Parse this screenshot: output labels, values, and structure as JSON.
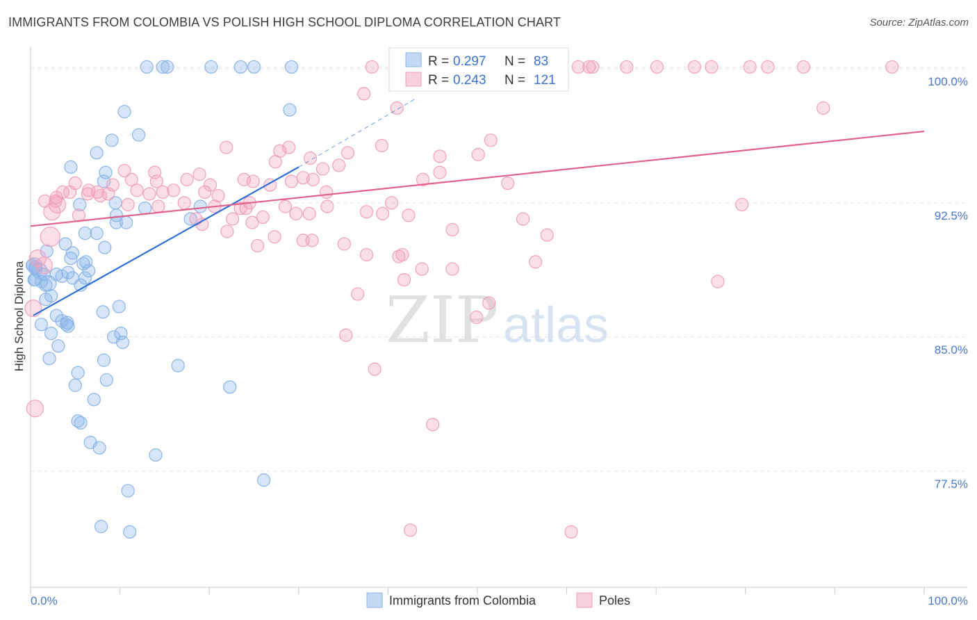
{
  "title": "IMMIGRANTS FROM COLOMBIA VS POLISH HIGH SCHOOL DIPLOMA CORRELATION CHART",
  "source": "Source: ZipAtlas.com",
  "watermark": {
    "zip": "ZIP",
    "atlas": "atlas"
  },
  "colors": {
    "blue": "#8ab4e8",
    "blue_fill": "rgba(138,180,232,0.35)",
    "blue_line": "#2d6fd6",
    "pink": "#f0a0bc",
    "pink_fill": "rgba(240,160,188,0.35)",
    "pink_line": "#e0608e",
    "tick_label": "#4a78c8",
    "grid": "#e2e2e2"
  },
  "legend": {
    "rows": [
      {
        "r_label": "R =",
        "r_value": "0.297",
        "n_label": "N =",
        "n_value": "83"
      },
      {
        "r_label": "R =",
        "r_value": "0.243",
        "n_label": "N =",
        "n_value": "121"
      }
    ]
  },
  "chart_data": {
    "type": "scatter",
    "title": "IMMIGRANTS FROM COLOMBIA VS POLISH HIGH SCHOOL DIPLOMA CORRELATION CHART",
    "xlabel": "",
    "ylabel": "High School Diploma",
    "xlim": [
      0,
      100
    ],
    "ylim": [
      71,
      101.2
    ],
    "x_tick_labels": [
      "0.0%",
      "100.0%"
    ],
    "y_ticks": [
      77.5,
      85.0,
      92.5,
      100.0
    ],
    "y_tick_labels": [
      "77.5%",
      "85.0%",
      "92.5%",
      "100.0%"
    ],
    "grid": true,
    "legend_position": "top-center",
    "series": [
      {
        "name": "Immigrants from Colombia",
        "color": "#8ab4e8",
        "trend": {
          "x": [
            0.3,
            30.0
          ],
          "y": [
            86.2,
            94.5
          ],
          "dashed_to": [
            43.0,
            98.3
          ]
        },
        "points": [
          [
            13,
            100.1
          ],
          [
            14.8,
            100.1
          ],
          [
            15.3,
            100.1
          ],
          [
            20.2,
            100.1
          ],
          [
            23.5,
            100.1
          ],
          [
            25,
            100.1
          ],
          [
            29.2,
            100.1
          ],
          [
            10.5,
            97.6
          ],
          [
            29,
            97.7
          ],
          [
            12.1,
            96.3
          ],
          [
            9.1,
            96.0
          ],
          [
            7.4,
            95.3
          ],
          [
            4.5,
            94.5
          ],
          [
            8.4,
            94.2
          ],
          [
            8.2,
            93.7
          ],
          [
            5.5,
            92.4
          ],
          [
            9.5,
            92.5
          ],
          [
            12.8,
            92.2
          ],
          [
            19,
            92.3
          ],
          [
            9.6,
            91.8
          ],
          [
            9.6,
            91.4
          ],
          [
            10.7,
            91.4
          ],
          [
            17.9,
            91.6
          ],
          [
            6.1,
            90.8
          ],
          [
            7.4,
            90.8
          ],
          [
            3.9,
            90.2
          ],
          [
            8.3,
            90.0
          ],
          [
            1.8,
            89.8
          ],
          [
            4.5,
            89.4
          ],
          [
            4.7,
            89.7
          ],
          [
            5.9,
            89.1
          ],
          [
            6.2,
            89.2
          ],
          [
            0.2,
            89.0
          ],
          [
            0.5,
            88.9
          ],
          [
            0.6,
            88.8
          ],
          [
            1.5,
            88.5
          ],
          [
            2.9,
            88.5
          ],
          [
            3.5,
            88.4
          ],
          [
            4.2,
            88.6
          ],
          [
            6.5,
            88.7
          ],
          [
            0.4,
            88.2
          ],
          [
            1.2,
            88.1
          ],
          [
            1.7,
            87.9
          ],
          [
            5.6,
            87.9
          ],
          [
            6.1,
            88.3
          ],
          [
            0.5,
            88.2
          ],
          [
            4.7,
            88.3
          ],
          [
            2.3,
            87.3
          ],
          [
            1.7,
            87.1
          ],
          [
            8.1,
            86.4
          ],
          [
            9.9,
            86.7
          ],
          [
            2.9,
            86.2
          ],
          [
            3.5,
            85.9
          ],
          [
            4,
            85.7
          ],
          [
            4.1,
            85.8
          ],
          [
            4.2,
            85.6
          ],
          [
            1.2,
            85.7
          ],
          [
            2.3,
            85.2
          ],
          [
            9.3,
            85.0
          ],
          [
            10.1,
            85.2
          ],
          [
            10.3,
            84.7
          ],
          [
            3.1,
            84.5
          ],
          [
            2.1,
            83.8
          ],
          [
            8.2,
            83.7
          ],
          [
            16.5,
            83.4
          ],
          [
            5.3,
            83.0
          ],
          [
            8.5,
            82.6
          ],
          [
            5,
            82.3
          ],
          [
            22.3,
            82.2
          ],
          [
            7.1,
            81.5
          ],
          [
            5.3,
            80.3
          ],
          [
            5.6,
            80.2
          ],
          [
            6.7,
            79.1
          ],
          [
            7.7,
            78.8
          ],
          [
            14,
            78.4
          ],
          [
            26.1,
            77.0
          ],
          [
            10.9,
            76.4
          ],
          [
            7.9,
            74.4
          ],
          [
            11.1,
            74.1
          ],
          [
            0.4,
            89.0
          ],
          [
            1.0,
            88.7
          ],
          [
            2.0,
            88.0
          ]
        ]
      },
      {
        "name": "Poles",
        "color": "#f0a0bc",
        "trend": {
          "x": [
            0,
            100
          ],
          "y": [
            91.2,
            96.5
          ]
        },
        "points": [
          [
            38.2,
            100.1
          ],
          [
            41.8,
            100.1
          ],
          [
            45.8,
            100.1
          ],
          [
            48.3,
            100.1
          ],
          [
            53.2,
            100.1
          ],
          [
            55.8,
            100.1
          ],
          [
            61.3,
            100.1
          ],
          [
            62.5,
            100.1
          ],
          [
            62.9,
            100.1
          ],
          [
            66.7,
            100.1
          ],
          [
            70.1,
            100.1
          ],
          [
            74.3,
            100.1
          ],
          [
            76.2,
            100.1
          ],
          [
            80.5,
            100.1
          ],
          [
            82.5,
            100.1
          ],
          [
            86.5,
            100.1
          ],
          [
            96.4,
            100.1
          ],
          [
            37.3,
            98.6
          ],
          [
            41.0,
            97.8
          ],
          [
            88.7,
            97.8
          ],
          [
            51.5,
            96.0
          ],
          [
            21.9,
            95.6
          ],
          [
            27.9,
            95.4
          ],
          [
            28.9,
            95.6
          ],
          [
            39.3,
            95.7
          ],
          [
            27.4,
            94.8
          ],
          [
            31.3,
            95.0
          ],
          [
            35.5,
            95.3
          ],
          [
            45.8,
            95.1
          ],
          [
            50.1,
            95.2
          ],
          [
            32.7,
            94.4
          ],
          [
            34.5,
            94.6
          ],
          [
            10.5,
            94.3
          ],
          [
            13.9,
            94.2
          ],
          [
            18.9,
            94.1
          ],
          [
            30.5,
            93.9
          ],
          [
            23.9,
            93.8
          ],
          [
            24.9,
            93.7
          ],
          [
            29.2,
            93.7
          ],
          [
            31.6,
            93.8
          ],
          [
            9.2,
            93.5
          ],
          [
            11.3,
            93.8
          ],
          [
            5,
            93.6
          ],
          [
            14.1,
            93.7
          ],
          [
            17.5,
            93.8
          ],
          [
            20.1,
            93.5
          ],
          [
            26.8,
            93.5
          ],
          [
            43.9,
            93.8
          ],
          [
            45.8,
            94.2
          ],
          [
            53.4,
            93.6
          ],
          [
            4.4,
            93.1
          ],
          [
            6.5,
            93.2
          ],
          [
            7.5,
            93.1
          ],
          [
            8.7,
            93.0
          ],
          [
            11.9,
            93.2
          ],
          [
            13.3,
            93.0
          ],
          [
            14.8,
            93.1
          ],
          [
            16.0,
            93.2
          ],
          [
            19.5,
            93.1
          ],
          [
            21.0,
            92.9
          ],
          [
            33.1,
            93.1
          ],
          [
            2.9,
            92.8
          ],
          [
            3.6,
            93.1
          ],
          [
            6.4,
            93.0
          ],
          [
            7.8,
            92.9
          ],
          [
            1.6,
            92.6
          ],
          [
            2.8,
            92.6
          ],
          [
            10.9,
            92.4
          ],
          [
            14.3,
            92.3
          ],
          [
            17.2,
            92.5
          ],
          [
            20.6,
            92.3
          ],
          [
            23.5,
            92.2
          ],
          [
            24.5,
            92.5
          ],
          [
            24.1,
            92.2
          ],
          [
            28.5,
            92.3
          ],
          [
            33.2,
            92.3
          ],
          [
            40.4,
            92.5
          ],
          [
            79.6,
            92.4
          ],
          [
            5.4,
            91.8
          ],
          [
            18.5,
            91.6
          ],
          [
            19.2,
            91.3
          ],
          [
            22.6,
            91.6
          ],
          [
            29.7,
            91.9
          ],
          [
            31.2,
            91.9
          ],
          [
            37.6,
            92.0
          ],
          [
            39.4,
            91.9
          ],
          [
            42.3,
            91.8
          ],
          [
            55.1,
            91.6
          ],
          [
            24.8,
            91.4
          ],
          [
            26,
            91.7
          ],
          [
            22,
            90.9
          ],
          [
            27.3,
            90.6
          ],
          [
            35.1,
            90.2
          ],
          [
            25.4,
            90.1
          ],
          [
            30.5,
            90.4
          ],
          [
            31.5,
            90.4
          ],
          [
            47.2,
            91.0
          ],
          [
            57.8,
            90.7
          ],
          [
            37.6,
            89.6
          ],
          [
            41.2,
            89.5
          ],
          [
            41.6,
            89.6
          ],
          [
            56.5,
            89.2
          ],
          [
            43.8,
            88.8
          ],
          [
            47.2,
            88.8
          ],
          [
            76.9,
            88.1
          ],
          [
            41.8,
            88.2
          ],
          [
            36.6,
            87.4
          ],
          [
            51.3,
            86.9
          ],
          [
            49.9,
            86.1
          ],
          [
            35.3,
            85.1
          ],
          [
            38.5,
            83.2
          ],
          [
            45,
            80.1
          ],
          [
            42.5,
            74.2
          ],
          [
            60.5,
            74.1
          ],
          [
            0.5,
            81.0
          ],
          [
            2.2,
            90.6
          ],
          [
            0.8,
            89.4
          ],
          [
            1.5,
            89.0
          ],
          [
            0.3,
            86.6
          ],
          [
            2.4,
            92.0
          ],
          [
            3.0,
            92.4
          ]
        ]
      }
    ]
  },
  "bottom_legend": {
    "items": [
      {
        "label": "Immigrants from Colombia",
        "color": "#8ab4e8"
      },
      {
        "label": "Poles",
        "color": "#f0a0bc"
      }
    ]
  }
}
